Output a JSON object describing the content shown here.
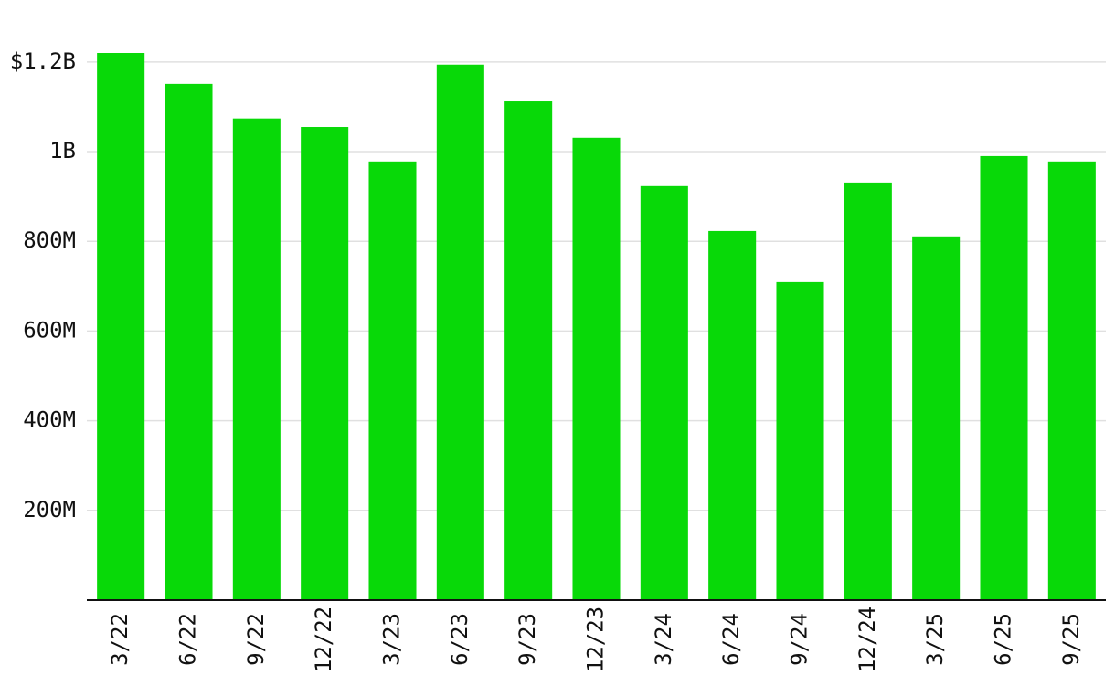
{
  "chart_data": {
    "type": "bar",
    "categories": [
      "3/22",
      "6/22",
      "9/22",
      "12/22",
      "3/23",
      "6/23",
      "9/23",
      "12/23",
      "3/24",
      "6/24",
      "9/24",
      "12/24",
      "3/25",
      "6/25",
      "9/25"
    ],
    "values": [
      1220000000,
      1151000000,
      1074000000,
      1055000000,
      978000000,
      1194000000,
      1112000000,
      1031000000,
      923000000,
      823000000,
      709000000,
      931000000,
      811000000,
      990000000,
      978000000
    ],
    "color": "#08d908",
    "ylim": [
      0,
      1220000000
    ],
    "yticks": [
      {
        "value": 200000000,
        "label": "200M"
      },
      {
        "value": 400000000,
        "label": "400M"
      },
      {
        "value": 600000000,
        "label": "600M"
      },
      {
        "value": 800000000,
        "label": "800M"
      },
      {
        "value": 1000000000,
        "label": "1B"
      },
      {
        "value": 1200000000,
        "label": "$1.2B"
      }
    ],
    "grid": true
  }
}
